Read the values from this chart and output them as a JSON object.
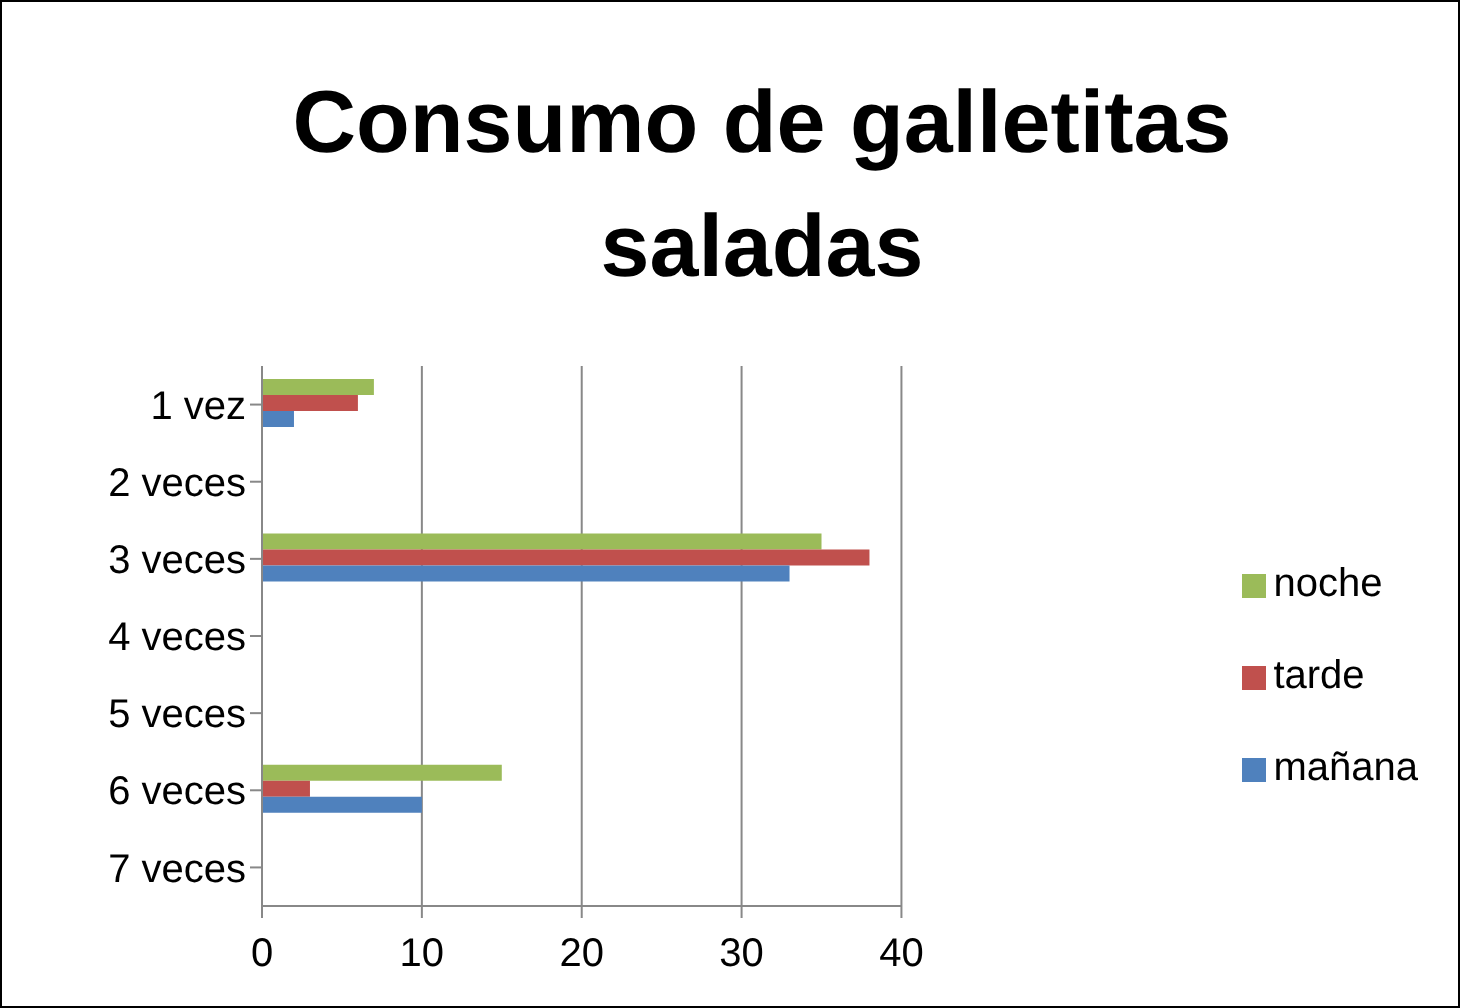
{
  "chart_data": {
    "type": "bar",
    "orientation": "horizontal",
    "title": "Consumo de galletitas saladas",
    "categories": [
      "1 vez",
      "2 veces",
      "3 veces",
      "4 veces",
      "5 veces",
      "6 veces",
      "7 veces"
    ],
    "series": [
      {
        "name": "noche",
        "color": "#9bbb59",
        "values": [
          7,
          null,
          35,
          null,
          null,
          15,
          null
        ]
      },
      {
        "name": "tarde",
        "color": "#c0504d",
        "values": [
          6,
          null,
          38,
          null,
          null,
          3,
          null
        ]
      },
      {
        "name": "mañana",
        "color": "#4f81bd",
        "values": [
          2,
          null,
          33,
          null,
          null,
          10,
          null
        ]
      }
    ],
    "xlim": [
      0,
      40
    ],
    "xticks": [
      0,
      10,
      20,
      30,
      40
    ],
    "grid": "x",
    "legend": "right"
  }
}
